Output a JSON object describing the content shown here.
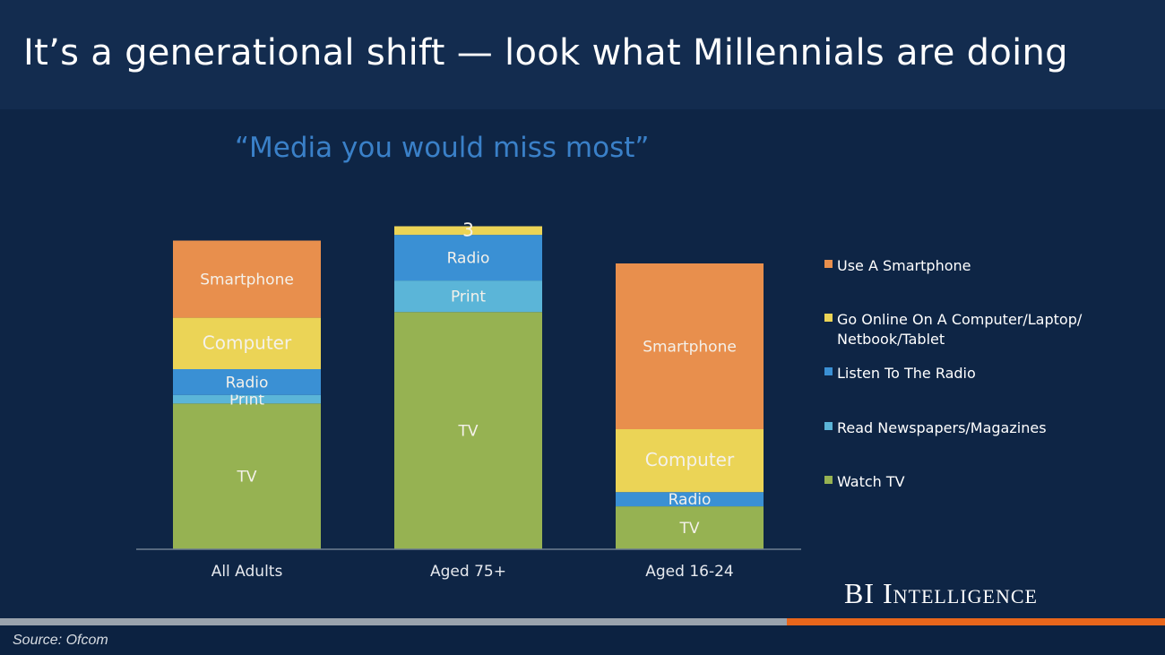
{
  "title": "It’s a generational shift — look what Millennials are doing",
  "brand": "BI Intelligence",
  "source": "Source: Ofcom",
  "chart_data": {
    "type": "bar",
    "stacked": true,
    "title": "“Media you would miss most”",
    "xlabel": "",
    "ylabel": "",
    "categories": [
      "All Adults",
      "Aged 75+",
      "Aged 16-24"
    ],
    "series": [
      {
        "name": "Watch TV",
        "key": "tv",
        "label": "TV",
        "color": "#96b252",
        "values": [
          51,
          83,
          15
        ]
      },
      {
        "name": "Read Newspapers/Magazines",
        "key": "print",
        "label": "Print",
        "color": "#5bb5d8",
        "values": [
          3,
          11,
          0
        ]
      },
      {
        "name": "Listen To The Radio",
        "key": "radio",
        "label": "Radio",
        "color": "#3a90d4",
        "values": [
          9,
          16,
          5
        ]
      },
      {
        "name": "Go Online On A Computer/Laptop/ Netbook/Tablet",
        "key": "computer",
        "label": "Computer",
        "color": "#ebd456",
        "values": [
          18,
          3,
          22
        ]
      },
      {
        "name": "Use A Smartphone",
        "key": "smartphone",
        "label": "Smartphone",
        "color": "#e88f4d",
        "values": [
          27,
          0,
          58
        ]
      }
    ],
    "data_labels": [
      [
        "TV",
        "Print",
        "Radio",
        "Computer",
        "Smartphone"
      ],
      [
        "TV",
        "Print",
        "Radio",
        "3",
        ""
      ],
      [
        "TV",
        "",
        "Radio",
        "Computer",
        "Smartphone"
      ]
    ],
    "legend": {
      "position": "right",
      "items": [
        {
          "label": "Use A Smartphone",
          "color": "#e88f4d"
        },
        {
          "label": "Go Online On A Computer/Laptop/\nNetbook/Tablet",
          "color": "#ebd456"
        },
        {
          "label": "Listen To The Radio",
          "color": "#3a90d4"
        },
        {
          "label": "Read Newspapers/Magazines",
          "color": "#5bb5d8"
        },
        {
          "label": "Watch TV",
          "color": "#96b252"
        }
      ]
    },
    "grid": false
  }
}
